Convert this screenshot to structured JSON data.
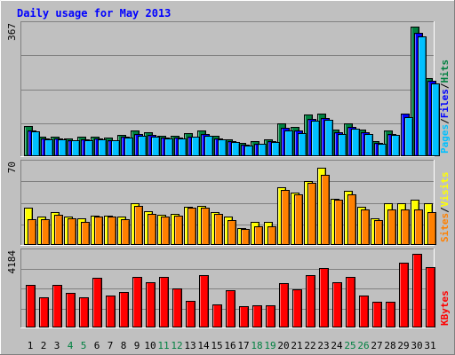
{
  "chart_data": [
    {
      "type": "bar",
      "title": "Daily usage for May 2013",
      "ymax_label": "367",
      "ylim": [
        0,
        367
      ],
      "categories": [
        "1",
        "2",
        "3",
        "4",
        "5",
        "6",
        "7",
        "8",
        "9",
        "10",
        "11",
        "12",
        "13",
        "14",
        "15",
        "16",
        "17",
        "18",
        "19",
        "20",
        "21",
        "22",
        "23",
        "24",
        "25",
        "26",
        "27",
        "28",
        "29",
        "30",
        "31"
      ],
      "weekend_categories": [
        "4",
        "5",
        "11",
        "12",
        "18",
        "19",
        "25",
        "26"
      ],
      "right_legend": [
        "Pages",
        "/",
        "Files",
        "/",
        "Hits"
      ],
      "grid": true,
      "series": [
        {
          "name": "Hits",
          "color": "#008040",
          "values": [
            84,
            54,
            52,
            48,
            52,
            54,
            50,
            58,
            72,
            66,
            56,
            56,
            64,
            70,
            56,
            46,
            36,
            40,
            46,
            90,
            80,
            116,
            118,
            74,
            90,
            74,
            40,
            70,
            0,
            367,
            220
          ]
        },
        {
          "name": "Files",
          "color": "#0000ff",
          "values": [
            72,
            48,
            47,
            44,
            46,
            48,
            44,
            52,
            60,
            58,
            50,
            50,
            54,
            60,
            48,
            40,
            30,
            34,
            40,
            78,
            70,
            104,
            106,
            66,
            80,
            66,
            36,
            62,
            120,
            350,
            212
          ]
        },
        {
          "name": "Pages",
          "color": "#00c0ff",
          "values": [
            68,
            46,
            45,
            42,
            44,
            46,
            42,
            50,
            56,
            54,
            48,
            48,
            52,
            56,
            46,
            38,
            28,
            32,
            38,
            72,
            64,
            98,
            100,
            62,
            76,
            62,
            34,
            58,
            110,
            340,
            204
          ]
        }
      ]
    },
    {
      "type": "bar",
      "ymax_label": "70",
      "ylim": [
        0,
        70
      ],
      "categories": [
        "1",
        "2",
        "3",
        "4",
        "5",
        "6",
        "7",
        "8",
        "9",
        "10",
        "11",
        "12",
        "13",
        "14",
        "15",
        "16",
        "17",
        "18",
        "19",
        "20",
        "21",
        "22",
        "23",
        "24",
        "25",
        "26",
        "27",
        "28",
        "29",
        "30",
        "31"
      ],
      "right_legend": [
        "Sites",
        "/",
        "Visits"
      ],
      "grid": true,
      "series": [
        {
          "name": "Visits",
          "color": "#ffff00",
          "values": [
            32,
            24,
            28,
            24,
            23,
            25,
            25,
            24,
            36,
            29,
            26,
            27,
            33,
            34,
            28,
            24,
            14,
            20,
            20,
            50,
            46,
            56,
            68,
            40,
            47,
            33,
            23,
            36,
            36,
            39,
            36
          ]
        },
        {
          "name": "Sites",
          "color": "#ff8000",
          "values": [
            22,
            22,
            26,
            23,
            20,
            24,
            24,
            22,
            34,
            27,
            24,
            25,
            32,
            32,
            27,
            21,
            13,
            16,
            16,
            48,
            44,
            54,
            61,
            39,
            44,
            31,
            21,
            31,
            31,
            31,
            28
          ]
        }
      ]
    },
    {
      "type": "bar",
      "ymax_label": "4184",
      "ylim": [
        0,
        4184
      ],
      "categories": [
        "1",
        "2",
        "3",
        "4",
        "5",
        "6",
        "7",
        "8",
        "9",
        "10",
        "11",
        "12",
        "13",
        "14",
        "15",
        "16",
        "17",
        "18",
        "19",
        "20",
        "21",
        "22",
        "23",
        "24",
        "25",
        "26",
        "27",
        "28",
        "29",
        "30",
        "31"
      ],
      "right_legend": [
        "KBytes"
      ],
      "grid": true,
      "series": [
        {
          "name": "KBytes",
          "color": "#ff0000",
          "values": [
            2400,
            1700,
            2400,
            1950,
            1700,
            2800,
            1800,
            2000,
            2850,
            2550,
            2850,
            2200,
            1500,
            2950,
            1300,
            2100,
            1150,
            1200,
            1200,
            2500,
            2150,
            2950,
            3350,
            2550,
            2850,
            1800,
            1450,
            1450,
            3650,
            4184,
            3400
          ]
        }
      ]
    }
  ]
}
